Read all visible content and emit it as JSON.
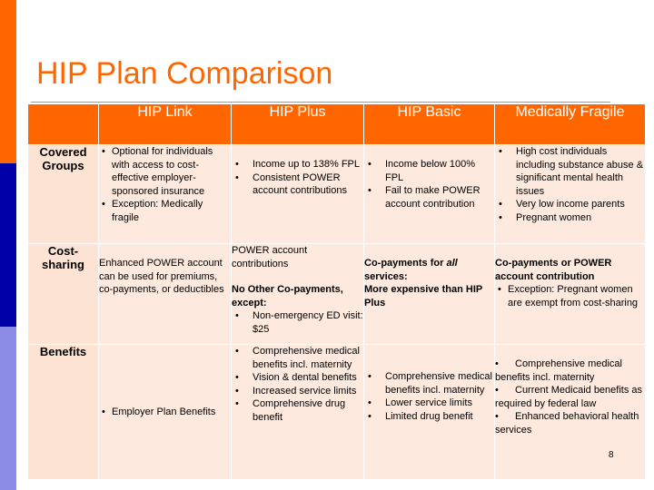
{
  "slide": {
    "title": "HIP Plan Comparison",
    "page_number": "8"
  },
  "table": {
    "headers": [
      "HIP Link",
      "HIP Plus",
      "HIP Basic",
      "Medically Fragile"
    ],
    "rows": [
      {
        "label": "Covered Groups",
        "cells": [
          {
            "items": [
              "Optional for individuals with access to cost-effective employer-sponsored insurance",
              "Exception:  Medically fragile"
            ]
          },
          {
            "items": [
              "Income up to 138% FPL",
              "Consistent POWER account contributions"
            ]
          },
          {
            "items": [
              "Income below 100% FPL",
              "Fail to make POWER account contribution"
            ]
          },
          {
            "items": [
              "High cost individuals including substance abuse & significant mental health issues",
              "Very low income parents",
              "Pregnant women"
            ]
          }
        ]
      },
      {
        "label": "Cost-sharing",
        "cells": [
          {
            "text": "Enhanced POWER account  can be used for premiums, co-payments, or deductibles"
          },
          {
            "text": "POWER account contributions",
            "subhead": "No Other Co-payments, except:",
            "items": [
              "Non-emergency ED visit: $25"
            ]
          },
          {
            "line1_pre": "Co-payments for ",
            "line1_italic": "all",
            "line1_post": " services:",
            "line2": "More expensive than HIP Plus"
          },
          {
            "bold_text": "Co-payments or POWER account contribution",
            "items": [
              "Exception:  Pregnant women are exempt from cost-sharing"
            ]
          }
        ]
      },
      {
        "label": "Benefits",
        "cells": [
          {
            "items": [
              "Employer Plan Benefits"
            ]
          },
          {
            "items": [
              "Comprehensive medical benefits incl. maternity",
              "Vision & dental benefits",
              "Increased service limits",
              "Comprehensive drug benefit"
            ]
          },
          {
            "items": [
              "Comprehensive medical benefits incl. maternity",
              "Lower service limits",
              "Limited drug benefit"
            ]
          },
          {
            "items": [
              "Comprehensive medical benefits incl. maternity",
              "Current Medicaid benefits as required by federal law",
              "Enhanced behavioral health services"
            ]
          }
        ]
      }
    ]
  },
  "colors": {
    "accent_orange": "#ff6600",
    "band_navy": "#0000a8",
    "band_periwinkle": "#8c8ce6",
    "cell_fill": "#fde9dd"
  }
}
